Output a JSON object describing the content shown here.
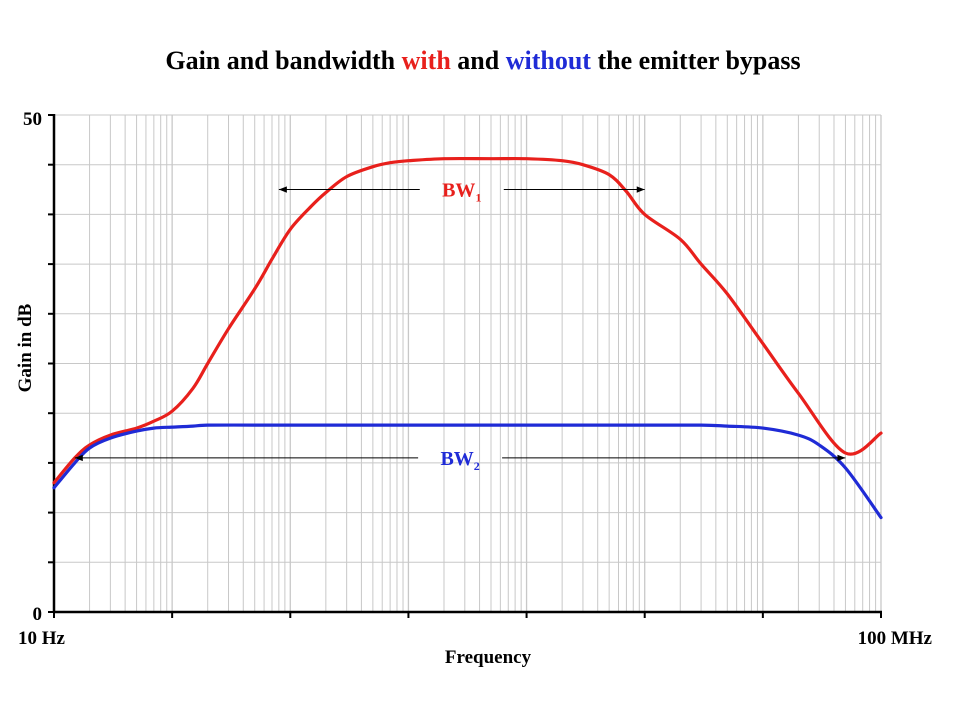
{
  "colors": {
    "with": "#e8201c",
    "without": "#1f2bd6",
    "grid": "#c8c8c8",
    "axis": "#000000",
    "text": "#000000"
  },
  "chart_data": {
    "type": "line",
    "title": {
      "part1": "Gain and bandwidth ",
      "part2": "with",
      "part3": " and ",
      "part4": "without",
      "part5": " the emitter bypass"
    },
    "xlabel": "Frequency",
    "ylabel": "Gain in dB",
    "xscale": "log",
    "xlim": [
      10,
      100000000
    ],
    "ylim": [
      0,
      50
    ],
    "x_tick_labels": {
      "min": "10 Hz",
      "max": "100 MHz"
    },
    "y_tick_labels": {
      "min": "0",
      "max": "50"
    },
    "grid": true,
    "series": [
      {
        "key": "with",
        "color": "#e8201c",
        "x": [
          10,
          15,
          20,
          30,
          50,
          70,
          100,
          150,
          200,
          300,
          500,
          700,
          1000,
          1500,
          2000,
          3000,
          5000,
          7000,
          10000,
          20000,
          50000,
          100000,
          200000,
          300000,
          500000,
          700000,
          1000000,
          2000000,
          3000000,
          5000000,
          10000000,
          20000000,
          50000000,
          100000000
        ],
        "y": [
          13.0,
          15.5,
          16.8,
          17.8,
          18.5,
          19.2,
          20.2,
          22.5,
          25.0,
          28.5,
          32.5,
          35.5,
          38.5,
          40.8,
          42.2,
          43.8,
          44.8,
          45.2,
          45.4,
          45.6,
          45.6,
          45.6,
          45.4,
          45.0,
          44.0,
          42.3,
          40.0,
          37.5,
          35.0,
          32.0,
          27.0,
          22.0,
          16.0,
          18.0
        ]
      },
      {
        "key": "without",
        "color": "#1f2bd6",
        "x": [
          10,
          15,
          20,
          30,
          50,
          70,
          100,
          150,
          200,
          500,
          1000,
          10000,
          100000,
          1000000,
          3000000,
          5000000,
          10000000,
          20000000,
          30000000,
          50000000,
          100000000
        ],
        "y": [
          12.5,
          15.0,
          16.5,
          17.5,
          18.2,
          18.5,
          18.6,
          18.7,
          18.8,
          18.8,
          18.8,
          18.8,
          18.8,
          18.8,
          18.8,
          18.7,
          18.5,
          17.8,
          16.8,
          14.5,
          9.5
        ]
      }
    ],
    "annotations": [
      {
        "key": "bw1",
        "text": "BW",
        "sub": "1",
        "x_from": 800,
        "x_to": 1000000,
        "y": 42.5,
        "color": "#e8201c"
      },
      {
        "key": "bw2",
        "text": "BW",
        "sub": "2",
        "x_from": 15,
        "x_to": 50000000,
        "y": 15.5,
        "color": "#1f2bd6"
      }
    ]
  }
}
